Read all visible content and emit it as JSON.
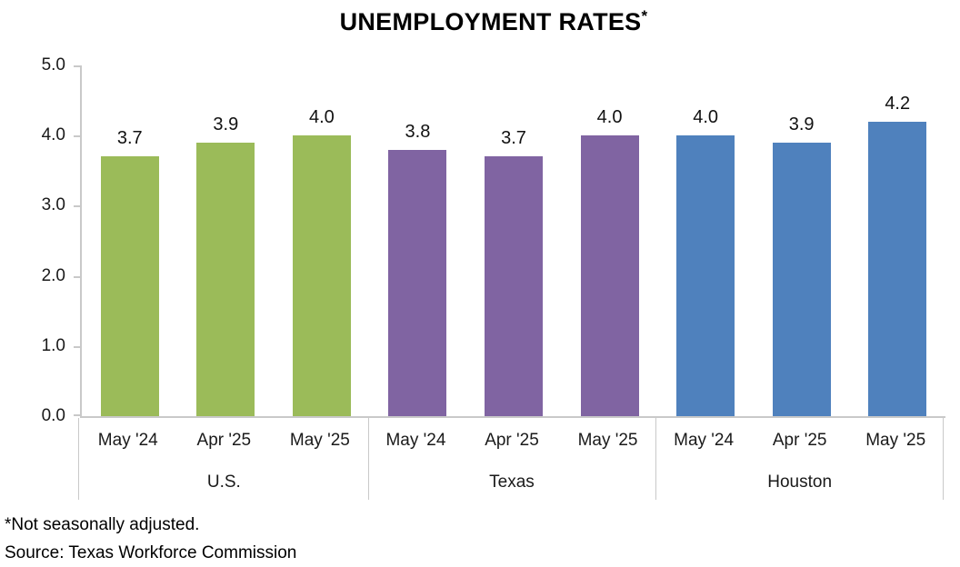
{
  "title": {
    "text": "UNEMPLOYMENT RATES",
    "superscript": "*"
  },
  "footnotes": {
    "note": "*Not seasonally adjusted.",
    "source": "Source: Texas Workforce Commission"
  },
  "chart_data": {
    "type": "bar",
    "title": "UNEMPLOYMENT RATES*",
    "categories": [
      "May '24",
      "Apr '25",
      "May '25"
    ],
    "series": [
      {
        "name": "U.S.",
        "color": "#9BBB59",
        "values": [
          3.7,
          3.9,
          4.0
        ]
      },
      {
        "name": "Texas",
        "color": "#8064A2",
        "values": [
          3.8,
          3.7,
          4.0
        ]
      },
      {
        "name": "Houston",
        "color": "#4F81BD",
        "values": [
          4.0,
          3.9,
          4.2
        ]
      }
    ],
    "ylim": [
      0,
      5
    ],
    "ytick_step": 1,
    "ytick_labels": [
      "0.0",
      "1.0",
      "2.0",
      "3.0",
      "4.0",
      "5.0"
    ],
    "grid": false,
    "legend_position": "none",
    "value_labels": true,
    "layout": "three region groups on a two-tier category axis, bars colored per group"
  },
  "colors": {
    "axis_line": "#c9c9c9",
    "label_text": "#1a1a1a"
  }
}
